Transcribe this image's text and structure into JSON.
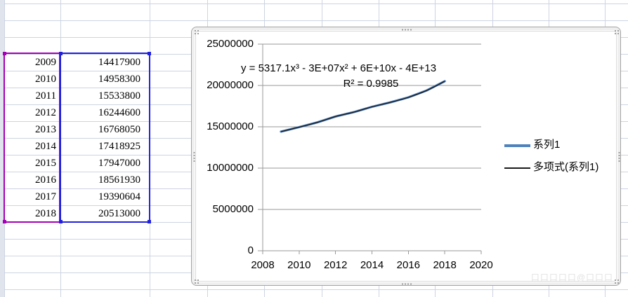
{
  "app": {
    "description": "Excel worksheet with selected data range and embedded line chart"
  },
  "sheet": {
    "rows": [
      {
        "year": "2009",
        "value": "14417900"
      },
      {
        "year": "2010",
        "value": "14958300"
      },
      {
        "year": "2011",
        "value": "15533800"
      },
      {
        "year": "2012",
        "value": "16244600"
      },
      {
        "year": "2013",
        "value": "16768050"
      },
      {
        "year": "2014",
        "value": "17418925"
      },
      {
        "year": "2015",
        "value": "17947000"
      },
      {
        "year": "2016",
        "value": "18561930"
      },
      {
        "year": "2017",
        "value": "19390604"
      },
      {
        "year": "2018",
        "value": "20513000"
      }
    ]
  },
  "chart_data": {
    "type": "line",
    "x": [
      2009,
      2010,
      2011,
      2012,
      2013,
      2014,
      2015,
      2016,
      2017,
      2018
    ],
    "series": [
      {
        "name": "系列1",
        "values": [
          14417900,
          14958300,
          15533800,
          16244600,
          16768050,
          17418925,
          17947000,
          18561930,
          19390604,
          20513000
        ]
      }
    ],
    "trendline": {
      "name": "多项式(系列1)",
      "equation": "y = 5317.1x³ - 3E+07x² + 6E+10x - 4E+13",
      "r_squared": "R² = 0.9985"
    },
    "title": "",
    "xlabel": "",
    "ylabel": "",
    "xlim": [
      2008,
      2020
    ],
    "ylim": [
      0,
      25000000
    ],
    "x_ticks": [
      2008,
      2010,
      2012,
      2014,
      2016,
      2018,
      2020
    ],
    "y_ticks": [
      0,
      5000000,
      10000000,
      15000000,
      20000000,
      25000000
    ],
    "grid": true,
    "legend_position": "right"
  },
  "legend": {
    "series_label": "系列1",
    "trendline_label": "多项式(系列1)"
  },
  "annotation": {
    "equation": "y = 5317.1x³ - 3E+07x² + 6E+10x - 4E+13",
    "r2": "R² = 0.9985"
  },
  "watermark": "口口口口口@口口口",
  "colors": {
    "series_line": "#4f81bd",
    "trendline": "#1a1a1a",
    "selection_year_border": "#a500b5",
    "selection_value_border": "#2121dc",
    "sheet_gridline": "#cdd4e1",
    "chart_gridline": "#9a9a9a"
  }
}
